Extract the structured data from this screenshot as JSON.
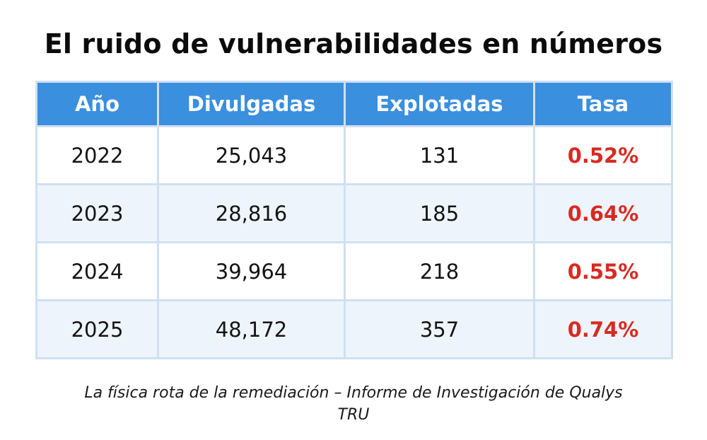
{
  "title": "El ruido de vulnerabilidades en números",
  "table": {
    "headers": [
      "Año",
      "Divulgadas",
      "Explotadas",
      "Tasa"
    ],
    "rows": [
      [
        "2022",
        "25,043",
        "131",
        "0.52%"
      ],
      [
        "2023",
        "28,816",
        "185",
        "0.64%"
      ],
      [
        "2024",
        "39,964",
        "218",
        "0.55%"
      ],
      [
        "2025",
        "48,172",
        "357",
        "0.74%"
      ]
    ]
  },
  "footer": {
    "line1": "La física rota de la remediación – Informe de Investigación de Qualys",
    "line2": "TRU"
  },
  "colors": {
    "header_bg": "#3a8fde",
    "rate_text": "#d82a22",
    "alt_row_bg": "#eef4fc",
    "grid": "#cfe0f3"
  }
}
